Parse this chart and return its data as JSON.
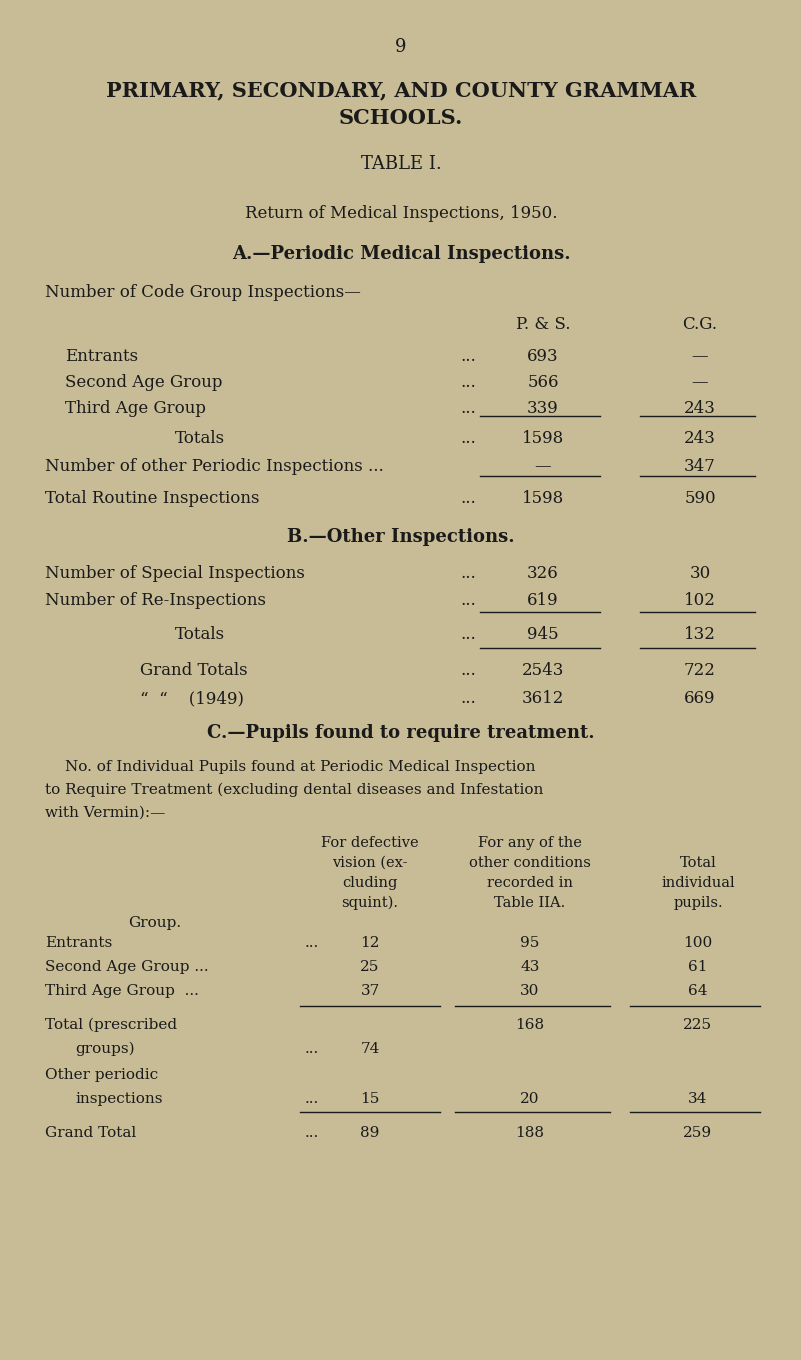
{
  "page_num": "9",
  "title1": "PRIMARY, SECONDARY, AND COUNTY GRAMMAR",
  "title2": "SCHOOLS.",
  "table_title": "TABLE I.",
  "subtitle": "Return of Medical Inspections, 1950.",
  "section_a": "A.—Periodic Medical Inspections.",
  "section_a_sub": "Number of Code Group Inspections—",
  "col_ps": "P. & S.",
  "col_cg": "C.G.",
  "rows_a": [
    [
      "Entrants",
      "693",
      "—"
    ],
    [
      "Second Age Group",
      "566",
      "—"
    ],
    [
      "Third Age Group",
      "339",
      "243"
    ]
  ],
  "totals_a": [
    "Totals",
    "1598",
    "243"
  ],
  "other_periodic": [
    "Number of other Periodic Inspections ...",
    "—",
    "347"
  ],
  "total_routine": [
    "Total Routine Inspections",
    "1598",
    "590"
  ],
  "section_b": "B.—Other Inspections.",
  "rows_b": [
    [
      "Number of Special Inspections",
      "326",
      "30"
    ],
    [
      "Number of Re-Inspections",
      "619",
      "102"
    ]
  ],
  "totals_b": [
    "Totals",
    "945",
    "132"
  ],
  "grand_totals": [
    "Grand Totals",
    "2543",
    "722"
  ],
  "grand_totals_1949": [
    "“  “    (1949)",
    "3612",
    "669"
  ],
  "section_c": "C.—Pupils found to require treatment.",
  "section_c_desc1": "No. of Individual Pupils found at Periodic Medical Inspection",
  "section_c_desc2": "to Require Treatment (excluding dental diseases and Infestation",
  "section_c_desc3": "with Vermin):—",
  "col_c1_line1": "For defective",
  "col_c1_line2": "vision (ex-",
  "col_c1_line3": "cluding",
  "col_c1_line4": "squint).",
  "col_c2_line1": "For any of the",
  "col_c2_line2": "other conditions",
  "col_c2_line3": "recorded in",
  "col_c2_line4": "Table IIA.",
  "col_c3_line1": "Total",
  "col_c3_line2": "individual",
  "col_c3_line3": "pupils.",
  "group_label": "Group.",
  "bg_color": "#c8bc96",
  "text_color": "#1a1a1a"
}
